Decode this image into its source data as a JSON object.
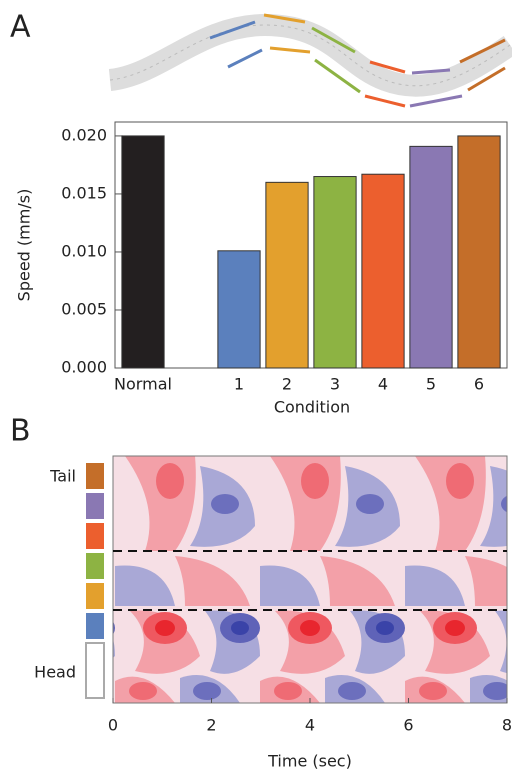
{
  "chart_data": [
    {
      "type": "bar",
      "panel_label": "A",
      "ylabel": "Speed (mm/s)",
      "xlabel": "Condition",
      "categories": [
        "Normal",
        null,
        "1",
        "2",
        "3",
        "4",
        "5",
        "6"
      ],
      "values": [
        0.02,
        null,
        0.0101,
        0.016,
        0.0165,
        0.0167,
        0.0191,
        0.02
      ],
      "colors": [
        "#231f20",
        "#999999",
        "#5b80bd",
        "#e3a02d",
        "#8db343",
        "#ec5f2e",
        "#8a78b3",
        "#c46e29"
      ],
      "ylim": [
        0,
        0.0212
      ],
      "yticks": [
        {
          "value": 0,
          "label": "0.000"
        },
        {
          "value": 0.005,
          "label": "0.005"
        },
        {
          "value": 0.01,
          "label": "0.010"
        },
        {
          "value": 0.015,
          "label": "0.015"
        },
        {
          "value": 0.02,
          "label": "0.020"
        }
      ]
    },
    {
      "type": "heatmap",
      "panel_label": "B",
      "xlabel": "Time (sec)",
      "top_label": "Tail",
      "bottom_label": "Head",
      "xlim": [
        0,
        8
      ],
      "xticks": [
        0,
        2,
        4,
        6,
        8
      ],
      "segment_colors": [
        "#c46e29",
        "#8a78b3",
        "#ec5f2e",
        "#8db343",
        "#e3a02d",
        "#5b80bd",
        "#ffffff"
      ]
    }
  ]
}
